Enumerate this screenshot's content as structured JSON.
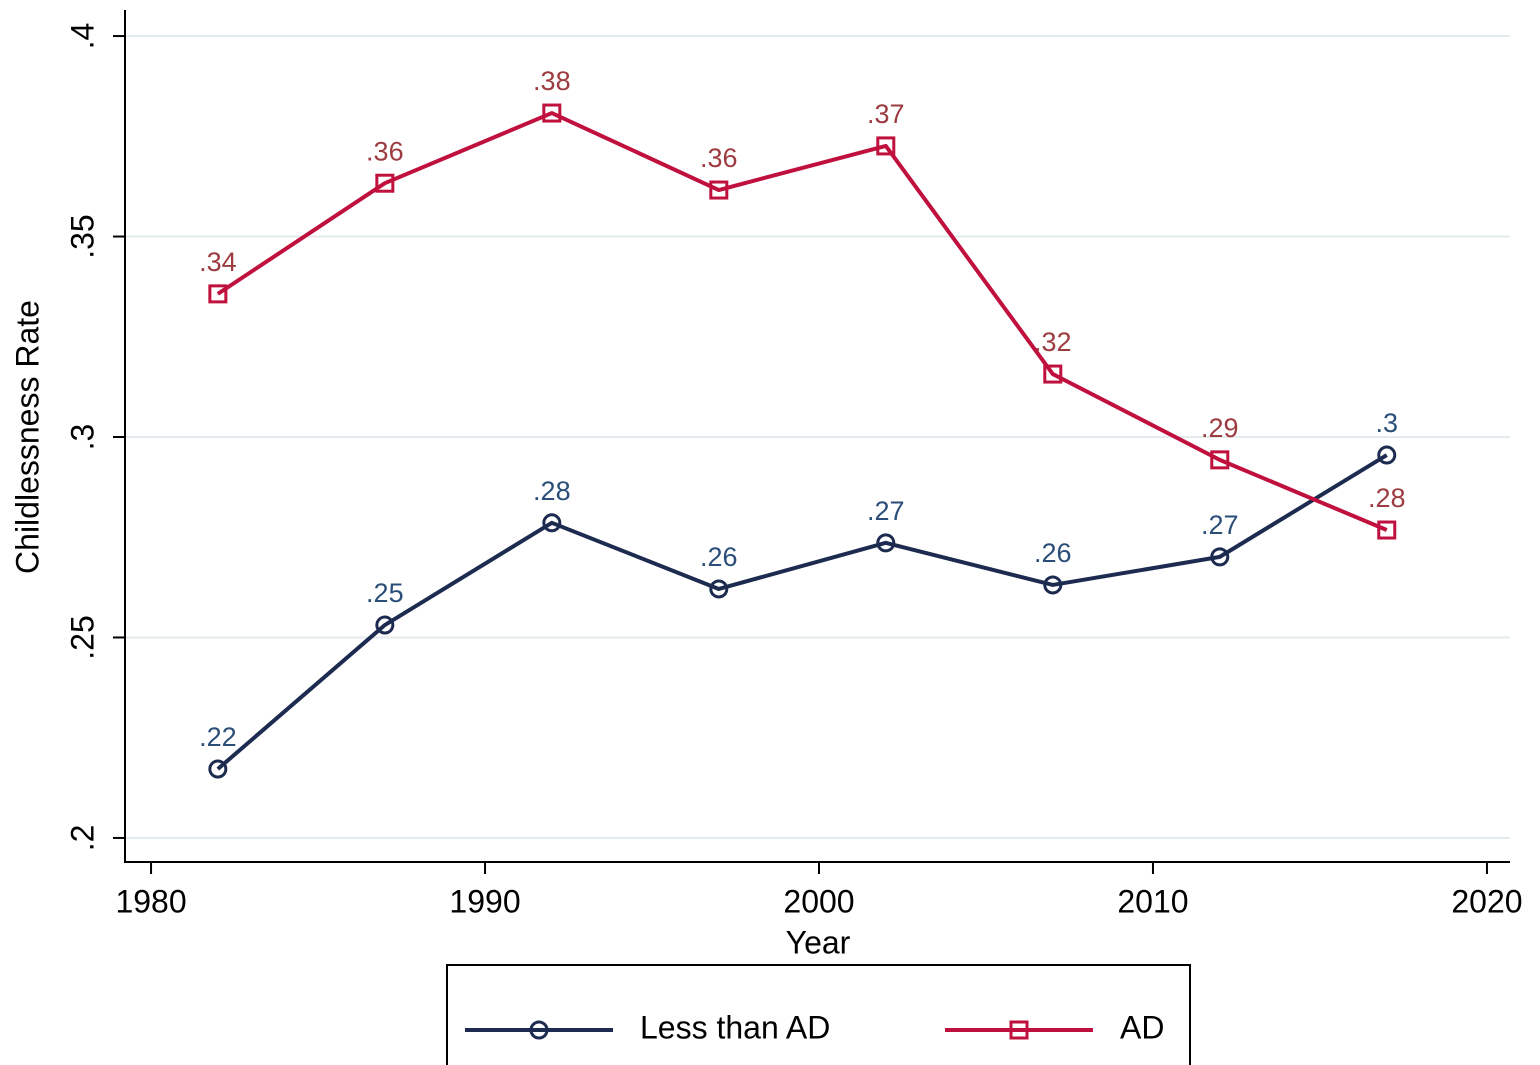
{
  "chart_data": {
    "type": "line",
    "x_label": "Year",
    "y_label": "Childlessness Rate",
    "x": [
      1982,
      1987,
      1992,
      1997,
      2002,
      2007,
      2012,
      2017
    ],
    "series": [
      {
        "name": "Less than AD",
        "color": "#1c2b4f",
        "label_color": "#2a4e78",
        "marker": "circle",
        "values": [
          0.2172,
          0.2531,
          0.2786,
          0.2621,
          0.2736,
          0.2631,
          0.2701,
          0.2955
        ],
        "value_labels": [
          ".22",
          ".25",
          ".28",
          ".26",
          ".27",
          ".26",
          ".27",
          ".3"
        ]
      },
      {
        "name": "AD",
        "color": "#c0103e",
        "label_color": "#9c3b40",
        "marker": "square",
        "values": [
          0.3357,
          0.3633,
          0.3808,
          0.3616,
          0.3726,
          0.3157,
          0.2943,
          0.2768
        ],
        "value_labels": [
          ".34",
          ".36",
          ".38",
          ".36",
          ".37",
          ".32",
          ".29",
          ".28"
        ]
      }
    ],
    "xlim": [
      1979.22,
      2020.69
    ],
    "ylim": [
      0.194,
      0.4065
    ],
    "xticks": [
      1980,
      1990,
      2000,
      2010,
      2020
    ],
    "yticks": [
      {
        "value": 0.2,
        "label": ".2"
      },
      {
        "value": 0.25,
        "label": ".25"
      },
      {
        "value": 0.3,
        "label": ".3"
      },
      {
        "value": 0.35,
        "label": ".35"
      },
      {
        "value": 0.4,
        "label": ".4"
      }
    ],
    "grid": true,
    "legend_position": "bottom"
  }
}
